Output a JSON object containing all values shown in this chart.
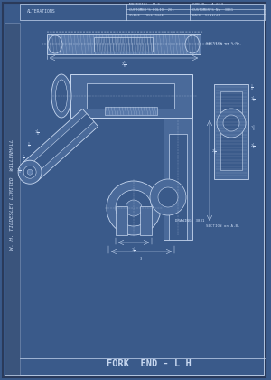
{
  "bg_color": "#3a5a8a",
  "blueprint_bg": "#4a6a9a",
  "line_color": "#c8d8f0",
  "dim_color": "#d0e0f8",
  "title": "FORK  END - L H",
  "side_text": "W. H. TILDESLEY LIMITED  WILLENHALL",
  "header": {
    "alterations": "ALTERATIONS",
    "material_label": "MATERIAL",
    "material_val": "M.S.",
    "our_no_label": "OUR No",
    "our_no_val": "A.633",
    "cust_folio_label": "CUSTOMER'S FOLIO",
    "cust_folio_val": "261",
    "cust_no_label": "CUSTOMER'S No",
    "cust_no_val": "3831",
    "scale_label": "SCALE",
    "scale_val": "FULL SIZE",
    "date_label": "DATE",
    "date_val": "6/11/28"
  },
  "section_label_cd": "SECTION on C.D.",
  "section_label_ab": "SECTION on A.B.",
  "drawing_no": "DRAWING  3831",
  "deep_blue": "#3a5a8a",
  "mid_blue": "#4a6a9a",
  "light_blue": "#5a7aaa",
  "border_dark": "#2a3a5a"
}
